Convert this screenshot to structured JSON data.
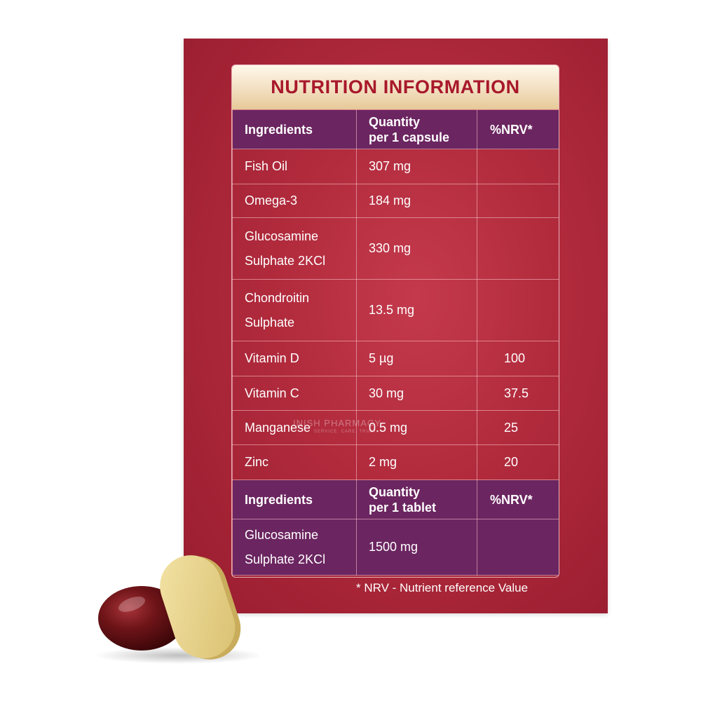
{
  "title": "NUTRITION INFORMATION",
  "capsule_header": {
    "ingredients": "Ingredients",
    "quantity_line1": "Quantity",
    "quantity_line2": "per 1 capsule",
    "nrv": "%NRV*"
  },
  "capsule_rows": [
    {
      "ingredient": [
        "Fish Oil"
      ],
      "quantity": "307 mg",
      "nrv": ""
    },
    {
      "ingredient": [
        "Omega-3"
      ],
      "quantity": "184 mg",
      "nrv": ""
    },
    {
      "ingredient": [
        "Glucosamine",
        "Sulphate 2KCl"
      ],
      "quantity": "330 mg",
      "nrv": ""
    },
    {
      "ingredient": [
        "Chondroitin",
        "Sulphate"
      ],
      "quantity": "13.5 mg",
      "nrv": ""
    },
    {
      "ingredient": [
        "Vitamin D"
      ],
      "quantity": "5 µg",
      "nrv": "100"
    },
    {
      "ingredient": [
        "Vitamin C"
      ],
      "quantity": "30 mg",
      "nrv": "37.5"
    },
    {
      "ingredient": [
        "Manganese"
      ],
      "quantity": "0.5 mg",
      "nrv": "25"
    },
    {
      "ingredient": [
        "Zinc"
      ],
      "quantity": "2 mg",
      "nrv": "20"
    }
  ],
  "tablet_header": {
    "ingredients": "Ingredients",
    "quantity_line1": "Quantity",
    "quantity_line2": "per 1 tablet",
    "nrv": "%NRV*"
  },
  "tablet_row": {
    "ingredient_line1": "Glucosamine",
    "ingredient_line2": "Sulphate 2KCl",
    "quantity": "1500 mg",
    "nrv": ""
  },
  "footnote": "* NRV - Nutrient reference Value",
  "watermark": {
    "name": "INISH PHARMACY",
    "tagline": "SERVICE. CARE. TRUST."
  },
  "colors": {
    "box_red": "#b02a3c",
    "header_purple": "#6b2560",
    "title_red": "#a8182b",
    "capsule_brown": "#6e1418",
    "tablet_yellow": "#e8d58a"
  }
}
